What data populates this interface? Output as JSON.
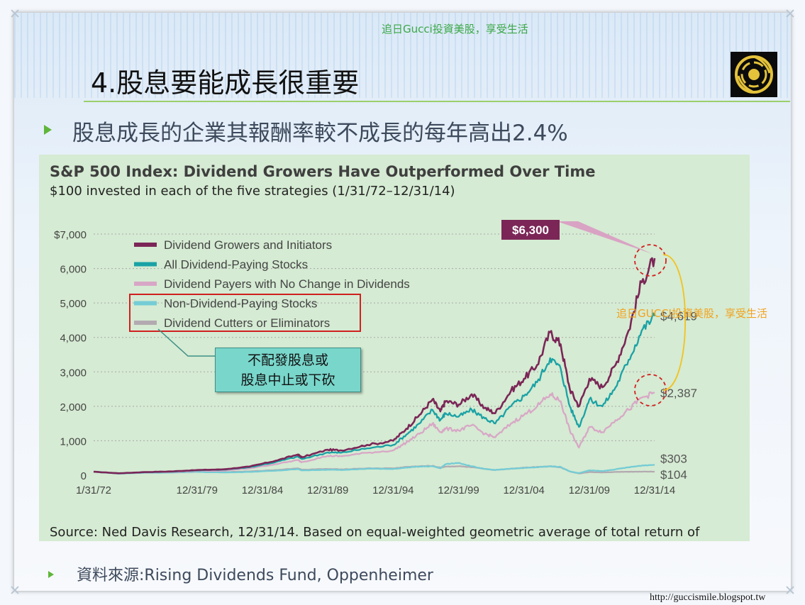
{
  "slide": {
    "watermark_top": "追日Gucci投資美股，享受生活",
    "title": "4.股息要能成長很重要",
    "subtitle": "股息成長的企業其報酬率較不成長的每年高出2.4%",
    "source_note": "資料來源:Rising Dividends Fund, Oppenheimer",
    "url": "http://guccismile.blogspot.tw",
    "overlay_watermark": "追日GUCCI投資美股，享受生活",
    "callout_line1": "不配發股息或",
    "callout_line2": "股息中止或下砍"
  },
  "chart_data": {
    "type": "line",
    "title": "S&P 500 Index: Dividend Growers Have Outperformed Over Time",
    "subtitle": "$100 invested in each of the five strategies (1/31/72–12/31/14)",
    "source": "Source: Ned Davis Research, 12/31/14. Based on equal-weighted geometric average of total return of",
    "ylim": [
      0,
      7000
    ],
    "xlim": [
      1972.08,
      2014.99
    ],
    "y_ticks": [
      "0",
      "1,000",
      "2,000",
      "3,000",
      "4,000",
      "5,000",
      "6,000",
      "$7,000"
    ],
    "x_ticks": [
      {
        "label": "1/31/72",
        "x": 1972.08
      },
      {
        "label": "12/31/79",
        "x": 1979.99
      },
      {
        "label": "12/31/84",
        "x": 1984.99
      },
      {
        "label": "12/31/89",
        "x": 1989.99
      },
      {
        "label": "12/31/94",
        "x": 1994.99
      },
      {
        "label": "12/31/99",
        "x": 1999.99
      },
      {
        "label": "12/31/04",
        "x": 2004.99
      },
      {
        "label": "12/31/09",
        "x": 2009.99
      },
      {
        "label": "12/31/14",
        "x": 2014.99
      }
    ],
    "highlight_label": "$6,300",
    "series": [
      {
        "name": "Dividend Growers and Initiators",
        "color": "#7b2657",
        "end_label": "",
        "x": [
          1972.08,
          1974,
          1976,
          1978,
          1980,
          1982,
          1984,
          1986,
          1987.7,
          1988,
          1990,
          1991,
          1993,
          1995,
          1996,
          1997,
          1998,
          1998.6,
          1999,
          2000,
          2001,
          2002,
          2002.8,
          2004,
          2005,
          2006,
          2007,
          2007.8,
          2008.5,
          2009.2,
          2010,
          2011,
          2012,
          2013,
          2014,
          2014.99
        ],
        "y": [
          100,
          55,
          90,
          110,
          150,
          170,
          250,
          420,
          600,
          520,
          740,
          720,
          880,
          1000,
          1350,
          1750,
          2200,
          1850,
          2150,
          2050,
          2350,
          1950,
          1800,
          2450,
          2800,
          3200,
          4150,
          3800,
          2500,
          2000,
          2800,
          2550,
          3200,
          4200,
          5600,
          6300
        ]
      },
      {
        "name": "All Dividend-Paying Stocks",
        "color": "#1aa2a5",
        "end_label": "$4,619",
        "x": [
          1972.08,
          1974,
          1976,
          1978,
          1980,
          1982,
          1984,
          1986,
          1987.7,
          1988,
          1990,
          1991,
          1993,
          1995,
          1996,
          1997,
          1998,
          1998.6,
          1999,
          2000,
          2001,
          2002,
          2002.8,
          2004,
          2005,
          2006,
          2007,
          2007.8,
          2008.5,
          2009.2,
          2010,
          2011,
          2012,
          2013,
          2014,
          2014.99
        ],
        "y": [
          100,
          58,
          85,
          100,
          140,
          160,
          230,
          380,
          540,
          470,
          660,
          650,
          780,
          880,
          1180,
          1500,
          1900,
          1600,
          1800,
          1700,
          1900,
          1650,
          1500,
          2000,
          2300,
          2700,
          3400,
          3100,
          2000,
          1400,
          2200,
          2000,
          2550,
          3350,
          4200,
          4619
        ]
      },
      {
        "name": "Dividend Payers with No Change in Dividends",
        "color": "#d8a7c6",
        "end_label": "$2,387",
        "x": [
          1972.08,
          1974,
          1976,
          1978,
          1980,
          1982,
          1984,
          1986,
          1987.7,
          1988,
          1990,
          1991,
          1993,
          1995,
          1996,
          1997,
          1998,
          1998.6,
          1999,
          2000,
          2001,
          2002,
          2002.8,
          2004,
          2005,
          2006,
          2007,
          2007.8,
          2008.5,
          2009.2,
          2010,
          2011,
          2012,
          2013,
          2014,
          2014.99
        ],
        "y": [
          100,
          60,
          80,
          90,
          120,
          130,
          200,
          320,
          440,
          380,
          560,
          550,
          650,
          720,
          950,
          1200,
          1500,
          1250,
          1350,
          1300,
          1450,
          1200,
          1100,
          1500,
          1750,
          2000,
          2350,
          2150,
          1300,
          800,
          1400,
          1250,
          1600,
          1900,
          2250,
          2387
        ]
      },
      {
        "name": "Non-Dividend-Paying Stocks",
        "color": "#74ccd5",
        "end_label": "$303",
        "x": [
          1972.08,
          1974,
          1976,
          1978,
          1980,
          1982,
          1984,
          1986,
          1987.7,
          1988,
          1990,
          1991,
          1993,
          1995,
          1996,
          1997,
          1998,
          1998.6,
          1999,
          2000,
          2001,
          2002,
          2002.8,
          2004,
          2005,
          2006,
          2007,
          2007.8,
          2008.5,
          2009.2,
          2010,
          2011,
          2012,
          2013,
          2014,
          2014.99
        ],
        "y": [
          100,
          45,
          70,
          75,
          95,
          80,
          95,
          130,
          180,
          140,
          160,
          150,
          190,
          180,
          220,
          250,
          260,
          200,
          320,
          360,
          260,
          180,
          150,
          190,
          210,
          230,
          260,
          240,
          110,
          60,
          140,
          120,
          170,
          230,
          280,
          303
        ]
      },
      {
        "name": "Dividend Cutters or Eliminators",
        "color": "#b3aab1",
        "end_label": "$104",
        "x": [
          1972.08,
          1974,
          1976,
          1978,
          1980,
          1982,
          1984,
          1986,
          1987.7,
          1988,
          1990,
          1991,
          1993,
          1995,
          1996,
          1997,
          1998,
          1998.6,
          1999,
          2000,
          2001,
          2002,
          2002.8,
          2004,
          2005,
          2006,
          2007,
          2007.8,
          2008.5,
          2009.2,
          2010,
          2011,
          2012,
          2013,
          2014,
          2014.99
        ],
        "y": [
          100,
          50,
          75,
          80,
          100,
          90,
          110,
          150,
          200,
          160,
          180,
          170,
          200,
          200,
          240,
          260,
          270,
          220,
          250,
          260,
          230,
          180,
          150,
          190,
          220,
          240,
          260,
          230,
          110,
          50,
          90,
          80,
          95,
          100,
          102,
          104
        ]
      }
    ]
  }
}
